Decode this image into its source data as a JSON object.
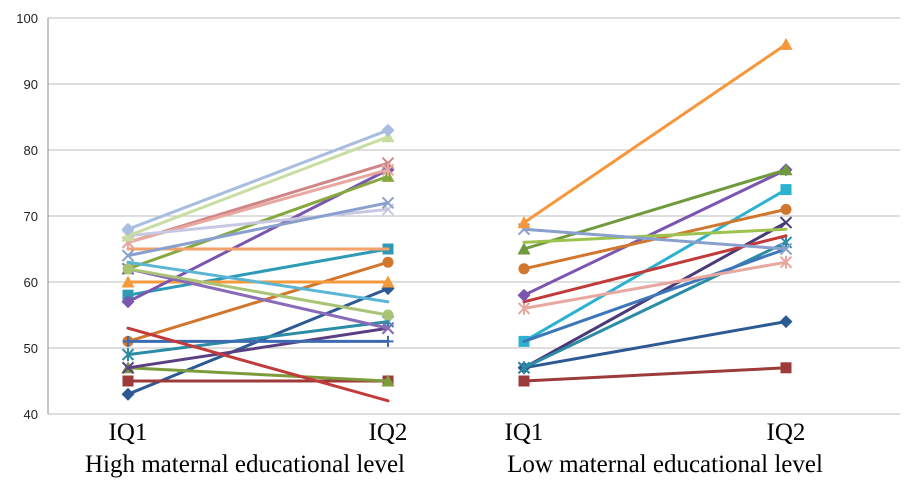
{
  "chart_data": {
    "type": "line",
    "ylim": [
      40,
      100
    ],
    "yticks": [
      40,
      50,
      60,
      70,
      80,
      90,
      100
    ],
    "grid": true,
    "groups": [
      {
        "label": "High maternal educational  level",
        "x": [
          "IQ1",
          "IQ2"
        ],
        "series": [
          {
            "values": [
              43,
              59
            ],
            "color": "#2e5a94",
            "marker": "diamond"
          },
          {
            "values": [
              45,
              45
            ],
            "color": "#9c3b3a",
            "marker": "square"
          },
          {
            "values": [
              47,
              45
            ],
            "color": "#7c9b3a",
            "marker": "triangle"
          },
          {
            "values": [
              47,
              53
            ],
            "color": "#5b3f83",
            "marker": "x"
          },
          {
            "values": [
              49,
              54
            ],
            "color": "#2b8ca5",
            "marker": "star"
          },
          {
            "values": [
              51,
              63
            ],
            "color": "#d0762d",
            "marker": "circle"
          },
          {
            "values": [
              51,
              51
            ],
            "color": "#3d6bb2",
            "marker": "plus"
          },
          {
            "values": [
              53,
              42
            ],
            "color": "#c23b3b",
            "marker": "none"
          },
          {
            "values": [
              58,
              65
            ],
            "color": "#2d9bb6",
            "marker": "square"
          },
          {
            "values": [
              60,
              60
            ],
            "color": "#f29a3c",
            "marker": "triangle"
          },
          {
            "values": [
              57,
              77
            ],
            "color": "#7a56b0",
            "marker": "diamond"
          },
          {
            "values": [
              62,
              76
            ],
            "color": "#86a93f",
            "marker": "triangle"
          },
          {
            "values": [
              62,
              53
            ],
            "color": "#8a6bb8",
            "marker": "x"
          },
          {
            "values": [
              62,
              55
            ],
            "color": "#a9c476",
            "marker": "circle"
          },
          {
            "values": [
              63,
              57
            ],
            "color": "#5bb6d6",
            "marker": "none"
          },
          {
            "values": [
              65,
              65
            ],
            "color": "#f4a26b",
            "marker": "none"
          },
          {
            "values": [
              66,
              78
            ],
            "color": "#cf8686",
            "marker": "x"
          },
          {
            "values": [
              66,
              77
            ],
            "color": "#e8a8a0",
            "marker": "star"
          },
          {
            "values": [
              67,
              71
            ],
            "color": "#c8c8e3",
            "marker": "x"
          },
          {
            "values": [
              67,
              82
            ],
            "color": "#c8dda2",
            "marker": "triangle"
          },
          {
            "values": [
              68,
              83
            ],
            "color": "#a9bde0",
            "marker": "diamond"
          },
          {
            "values": [
              64,
              72
            ],
            "color": "#8aa0cc",
            "marker": "x"
          }
        ]
      },
      {
        "label": "Low maternal educational  level",
        "x": [
          "IQ1",
          "IQ2"
        ],
        "series": [
          {
            "values": [
              45,
              47
            ],
            "color": "#9c3b3a",
            "marker": "square"
          },
          {
            "values": [
              47,
              54
            ],
            "color": "#2e5a94",
            "marker": "diamond"
          },
          {
            "values": [
              47,
              69
            ],
            "color": "#4a3a7a",
            "marker": "x"
          },
          {
            "values": [
              47,
              66
            ],
            "color": "#2b8ca5",
            "marker": "star"
          },
          {
            "values": [
              51,
              74
            ],
            "color": "#2db1d0",
            "marker": "square"
          },
          {
            "values": [
              51,
              65
            ],
            "color": "#3d77b9",
            "marker": "none"
          },
          {
            "values": [
              56,
              63
            ],
            "color": "#e8a8a0",
            "marker": "star"
          },
          {
            "values": [
              57,
              67
            ],
            "color": "#c23b3b",
            "marker": "none"
          },
          {
            "values": [
              58,
              77
            ],
            "color": "#7a56b0",
            "marker": "diamond"
          },
          {
            "values": [
              62,
              71
            ],
            "color": "#d0762d",
            "marker": "circle"
          },
          {
            "values": [
              65,
              77
            ],
            "color": "#6f9a3d",
            "marker": "triangle"
          },
          {
            "values": [
              66,
              68
            ],
            "color": "#9dc34f",
            "marker": "none"
          },
          {
            "values": [
              68,
              65
            ],
            "color": "#8aa0cc",
            "marker": "x"
          },
          {
            "values": [
              69,
              96
            ],
            "color": "#f7963b",
            "marker": "triangle"
          }
        ]
      }
    ]
  }
}
